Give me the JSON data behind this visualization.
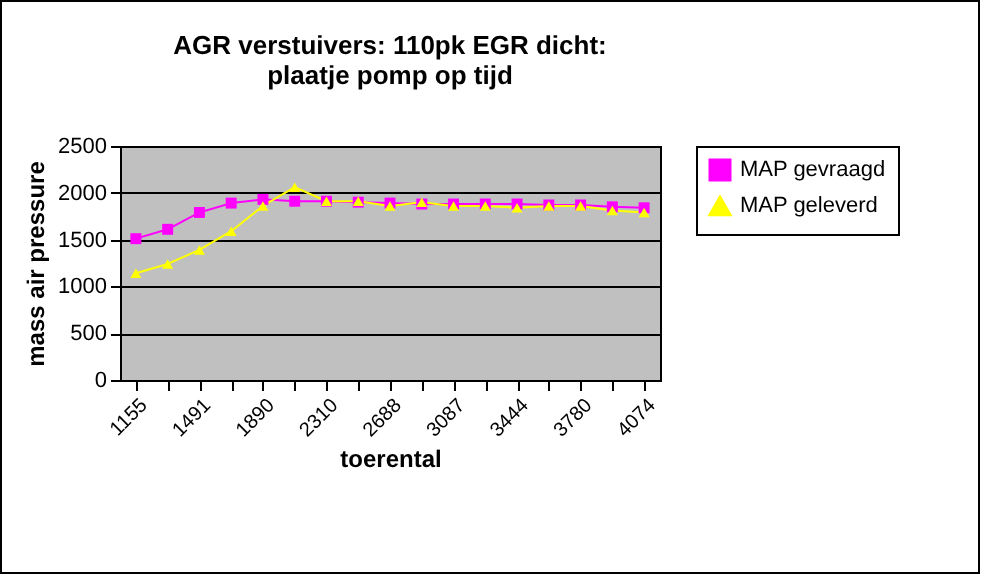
{
  "chart_data": {
    "type": "line",
    "title": [
      "AGR   verstuivers: 110pk   EGR dicht:",
      "plaatje   pomp op tijd"
    ],
    "xlabel": "toerental",
    "ylabel": "mass air pressure",
    "categories": [
      "1155",
      null,
      "1491",
      null,
      "1890",
      null,
      "2310",
      null,
      "2688",
      null,
      "3087",
      null,
      "3444",
      null,
      "3780",
      null,
      "4074"
    ],
    "series": [
      {
        "name": "MAP gevraagd",
        "color": "#ff00ff",
        "marker": "square",
        "values": [
          1510,
          1610,
          1790,
          1890,
          1930,
          1910,
          1910,
          1900,
          1890,
          1880,
          1880,
          1880,
          1880,
          1870,
          1870,
          1850,
          1840
        ]
      },
      {
        "name": "MAP geleverd",
        "color": "#ffff00",
        "marker": "triangle",
        "values": [
          1140,
          1240,
          1390,
          1590,
          1860,
          2060,
          1910,
          1910,
          1860,
          1900,
          1860,
          1860,
          1840,
          1860,
          1860,
          1810,
          1790
        ]
      }
    ],
    "ylim": [
      0,
      2500
    ],
    "yticks": [
      0,
      500,
      1000,
      1500,
      2000,
      2500
    ],
    "grid": "y",
    "legend": "right"
  }
}
